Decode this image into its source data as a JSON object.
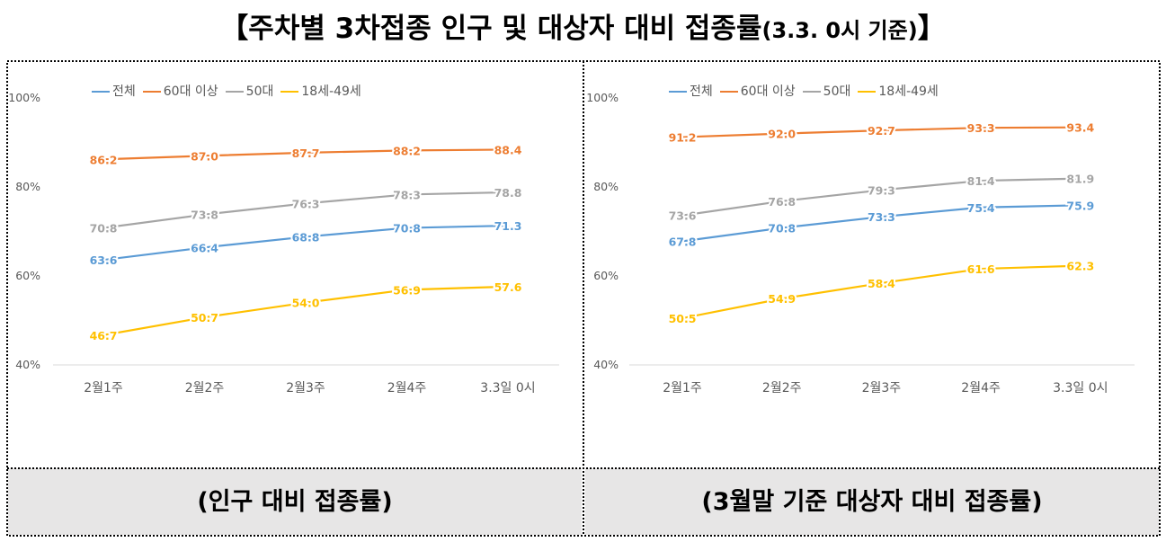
{
  "title": {
    "main": "【주차별 3차접종 인구 및 대상자 대비 접종률",
    "sub": "(3.3. 0시 기준)",
    "end": "】"
  },
  "colors": {
    "전체": "#5b9bd5",
    "60대 이상": "#ed7d31",
    "50대": "#a5a5a5",
    "18세-49세": "#ffc000",
    "caption_bg": "#e7e6e6"
  },
  "captions": {
    "left": "(인구 대비 접종률)",
    "right": "(3월말 기준 대상자 대비 접종률)"
  },
  "legend": [
    "전체",
    "60대 이상",
    "50대",
    "18세-49세"
  ],
  "chart_data": [
    {
      "type": "line",
      "title": "(인구 대비 접종률)",
      "categories": [
        "2월1주",
        "2월2주",
        "2월3주",
        "2월4주",
        "3.3일 0시"
      ],
      "ylim": [
        40,
        100
      ],
      "yticks": [
        "40%",
        "60%",
        "80%",
        "100%"
      ],
      "ytick_values": [
        40,
        60,
        80,
        100
      ],
      "series": [
        {
          "name": "60대 이상",
          "values": [
            86.2,
            87.0,
            87.7,
            88.2,
            88.4
          ],
          "labels": [
            "86.2",
            "87.0",
            "87.7",
            "88.2",
            "88.4"
          ]
        },
        {
          "name": "50대",
          "values": [
            70.8,
            73.8,
            76.3,
            78.3,
            78.8
          ],
          "labels": [
            "70.8",
            "73.8",
            "76.3",
            "78.3",
            "78.8"
          ]
        },
        {
          "name": "전체",
          "values": [
            63.6,
            66.4,
            68.8,
            70.8,
            71.3
          ],
          "labels": [
            "63.6",
            "66.4",
            "68.8",
            "70.8",
            "71.3"
          ]
        },
        {
          "name": "18세-49세",
          "values": [
            46.7,
            50.7,
            54.0,
            56.9,
            57.6
          ],
          "labels": [
            "46.7",
            "50.7",
            "54.0",
            "56.9",
            "57.6"
          ]
        }
      ]
    },
    {
      "type": "line",
      "title": "(3월말 기준 대상자 대비 접종률)",
      "categories": [
        "2월1주",
        "2월2주",
        "2월3주",
        "2월4주",
        "3.3일 0시"
      ],
      "ylim": [
        40,
        100
      ],
      "yticks": [
        "40%",
        "60%",
        "80%",
        "100%"
      ],
      "ytick_values": [
        40,
        60,
        80,
        100
      ],
      "series": [
        {
          "name": "60대 이상",
          "values": [
            91.2,
            92.0,
            92.7,
            93.3,
            93.4
          ],
          "labels": [
            "91.2",
            "92.0",
            "92.7",
            "93.3",
            "93.4"
          ]
        },
        {
          "name": "50대",
          "values": [
            73.6,
            76.8,
            79.3,
            81.4,
            81.9
          ],
          "labels": [
            "73.6",
            "76.8",
            "79.3",
            "81.4",
            "81.9"
          ]
        },
        {
          "name": "전체",
          "values": [
            67.8,
            70.8,
            73.3,
            75.4,
            75.9
          ],
          "labels": [
            "67.8",
            "70.8",
            "73.3",
            "75.4",
            "75.9"
          ]
        },
        {
          "name": "18세-49세",
          "values": [
            50.5,
            54.9,
            58.4,
            61.6,
            62.3
          ],
          "labels": [
            "50.5",
            "54.9",
            "58.4",
            "61.6",
            "62.3"
          ]
        }
      ]
    }
  ]
}
